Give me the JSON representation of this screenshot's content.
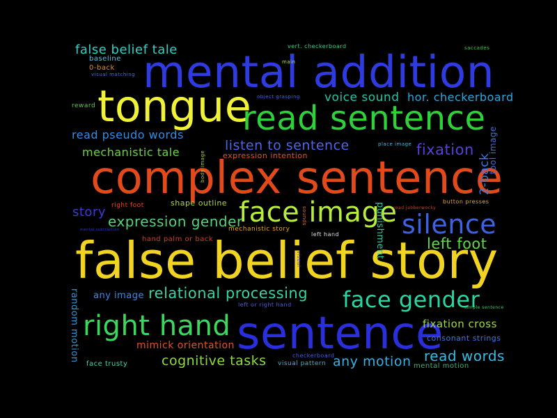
{
  "words": [
    {
      "text": "mental addition",
      "color": "#2e3be0"
    },
    {
      "text": "false belief story",
      "color": "#f1d421"
    },
    {
      "text": "complex sentence",
      "color": "#e24a1b"
    },
    {
      "text": "sentence",
      "color": "#2a2fdc"
    },
    {
      "text": "tongue",
      "color": "#eff236"
    },
    {
      "text": "read sentence",
      "color": "#2fd13b"
    },
    {
      "text": "face image",
      "color": "#b6ee3b"
    },
    {
      "text": "silence",
      "color": "#3f63e0"
    },
    {
      "text": "right hand",
      "color": "#3bd85d"
    },
    {
      "text": "face gender",
      "color": "#27d7a3"
    },
    {
      "text": "false belief tale",
      "color": "#2fd2c6"
    },
    {
      "text": "voice sound",
      "color": "#24c6ad"
    },
    {
      "text": "hor. checkerboard",
      "color": "#2aa9e0"
    },
    {
      "text": "listen to sentence",
      "color": "#4c64f0"
    },
    {
      "text": "read pseudo words",
      "color": "#2f8fe8"
    },
    {
      "text": "mechanistic tale",
      "color": "#67d83a"
    },
    {
      "text": "fixation",
      "color": "#5a3fdc"
    },
    {
      "text": "expression gender",
      "color": "#54d37a"
    },
    {
      "text": "story",
      "color": "#3c3bd9"
    },
    {
      "text": "left foot",
      "color": "#5ed94a"
    },
    {
      "text": "relational processing",
      "color": "#35d6a5"
    },
    {
      "text": "cognitive tasks",
      "color": "#8bde3c"
    },
    {
      "text": "any motion",
      "color": "#35b3e6"
    },
    {
      "text": "read words",
      "color": "#34bde6"
    },
    {
      "text": "fixation cross",
      "color": "#9ed842"
    },
    {
      "text": "mimick orientation",
      "color": "#e3541c"
    },
    {
      "text": "any image",
      "color": "#3a8ce8"
    },
    {
      "text": "random motion",
      "color": "#2e97d8"
    },
    {
      "text": "2-back",
      "color": "#3f7ae6"
    },
    {
      "text": "tool image",
      "color": "#3f6fe3"
    },
    {
      "text": "punishment",
      "color": "#34c49a"
    },
    {
      "text": "shape outline",
      "color": "#b3d63f"
    },
    {
      "text": "expression intention",
      "color": "#e3541c"
    },
    {
      "text": "hand palm or back",
      "color": "#d63a2a"
    },
    {
      "text": "right foot",
      "color": "#e64a1f"
    },
    {
      "text": "mechanistic story",
      "color": "#e6a728"
    },
    {
      "text": "left hand",
      "color": "#e0e0e0"
    },
    {
      "text": "left or right hand",
      "color": "#4f5ce6"
    },
    {
      "text": "consonant strings",
      "color": "#3a7ae6"
    },
    {
      "text": "visual pattern",
      "color": "#3ab6d8"
    },
    {
      "text": "checkerboard",
      "color": "#4b5be6"
    },
    {
      "text": "face trusty",
      "color": "#4bd1b0"
    },
    {
      "text": "mental motion",
      "color": "#3fb17e"
    },
    {
      "text": "baseline",
      "color": "#5fc3e6"
    },
    {
      "text": "0-back",
      "color": "#e88c22"
    },
    {
      "text": "visual matching",
      "color": "#4b6be6"
    },
    {
      "text": "reward",
      "color": "#4fd13e"
    },
    {
      "text": "vert. checkerboard",
      "color": "#3fd18d"
    },
    {
      "text": "saccades",
      "color": "#3fc93e"
    },
    {
      "text": "main",
      "color": "#b9e13a"
    },
    {
      "text": "object grasping",
      "color": "#3a63e6"
    },
    {
      "text": "place image",
      "color": "#3fbfe6"
    },
    {
      "text": "body image",
      "color": "#b0d63a"
    },
    {
      "text": "button presses",
      "color": "#e6a728"
    },
    {
      "text": "read jabberwocky",
      "color": "#e23b1c"
    },
    {
      "text": "mental subtraction",
      "color": "#2a3fdc"
    },
    {
      "text": "simple sentence",
      "color": "#3fd16e"
    },
    {
      "text": "sounds",
      "color": "#e0742a"
    },
    {
      "text": "visual",
      "color": "#5a3fdc"
    }
  ]
}
